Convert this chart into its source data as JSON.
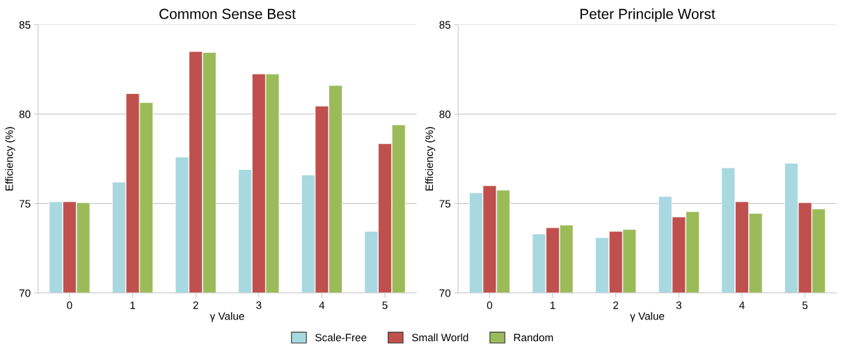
{
  "chart_data": [
    {
      "type": "bar",
      "title": "Common Sense Best",
      "xlabel": "γ Value",
      "ylabel": "Efficiency (%)",
      "categories": [
        "0",
        "1",
        "2",
        "3",
        "4",
        "5"
      ],
      "ylim": [
        70,
        85
      ],
      "yticks": [
        70,
        75,
        80,
        85
      ],
      "grid": "y",
      "legend": "bottom",
      "series": [
        {
          "name": "Scale-Free",
          "color": "#a8d8e0",
          "values": [
            75.1,
            76.2,
            77.6,
            76.9,
            76.6,
            73.45
          ]
        },
        {
          "name": "Small World",
          "color": "#c0504d",
          "values": [
            75.1,
            81.15,
            83.5,
            82.25,
            80.45,
            78.35
          ]
        },
        {
          "name": "Random",
          "color": "#9bbb59",
          "values": [
            75.05,
            80.65,
            83.45,
            82.25,
            81.6,
            79.4
          ]
        }
      ]
    },
    {
      "type": "bar",
      "title": "Peter Principle Worst",
      "xlabel": "γ Value",
      "ylabel": "Efficiency (%)",
      "categories": [
        "0",
        "1",
        "2",
        "3",
        "4",
        "5"
      ],
      "ylim": [
        70,
        85
      ],
      "yticks": [
        70,
        75,
        80,
        85
      ],
      "grid": "y",
      "legend": "bottom",
      "series": [
        {
          "name": "Scale-Free",
          "color": "#a8d8e0",
          "values": [
            75.6,
            73.3,
            73.1,
            75.4,
            77.0,
            77.25
          ]
        },
        {
          "name": "Small World",
          "color": "#c0504d",
          "values": [
            76.0,
            73.65,
            73.45,
            74.25,
            75.1,
            75.05
          ]
        },
        {
          "name": "Random",
          "color": "#9bbb59",
          "values": [
            75.75,
            73.8,
            73.55,
            74.55,
            74.45,
            74.7
          ]
        }
      ]
    }
  ]
}
